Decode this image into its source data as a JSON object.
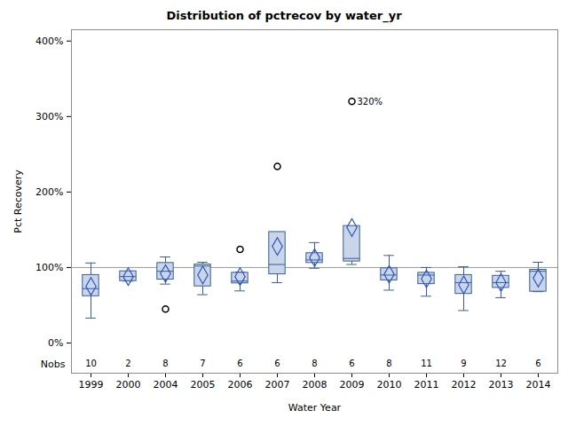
{
  "chart_data": {
    "type": "box",
    "title": "Distribution of pctrecov by water_yr",
    "x_label": "Water Year",
    "y_label": "Pct Recovery",
    "categories": [
      "1999",
      "2000",
      "2004",
      "2005",
      "2006",
      "2007",
      "2008",
      "2009",
      "2010",
      "2011",
      "2012",
      "2013",
      "2014"
    ],
    "boxes": [
      {
        "min": 33,
        "q1": 62,
        "median": 72,
        "q3": 90,
        "max": 106,
        "mean": 75,
        "nobs": 10,
        "outliers": []
      },
      {
        "min": 82,
        "q1": 82,
        "median": 88,
        "q3": 95,
        "max": 95,
        "mean": 88,
        "nobs": 2,
        "outliers": []
      },
      {
        "min": 78,
        "q1": 84,
        "median": 95,
        "q3": 106,
        "max": 114,
        "mean": 92,
        "nobs": 8,
        "outliers": [
          45
        ]
      },
      {
        "min": 64,
        "q1": 75,
        "median": 102,
        "q3": 104,
        "max": 107,
        "mean": 90,
        "nobs": 7,
        "outliers": []
      },
      {
        "min": 69,
        "q1": 79,
        "median": 82,
        "q3": 93,
        "max": 94,
        "mean": 88,
        "nobs": 6,
        "outliers": [
          124
        ]
      },
      {
        "min": 80,
        "q1": 91,
        "median": 104,
        "q3": 147,
        "max": 147,
        "mean": 128,
        "nobs": 6,
        "outliers": [
          234
        ]
      },
      {
        "min": 99,
        "q1": 106,
        "median": 110,
        "q3": 119,
        "max": 133,
        "mean": 113,
        "nobs": 8,
        "outliers": []
      },
      {
        "min": 104,
        "q1": 108,
        "median": 112,
        "q3": 155,
        "max": 155,
        "mean": 153,
        "nobs": 6,
        "outliers": [
          320
        ],
        "outlier_labels": [
          "320%"
        ]
      },
      {
        "min": 70,
        "q1": 83,
        "median": 90,
        "q3": 99,
        "max": 116,
        "mean": 91,
        "nobs": 8,
        "outliers": []
      },
      {
        "min": 62,
        "q1": 78,
        "median": 90,
        "q3": 93,
        "max": 100,
        "mean": 85,
        "nobs": 11,
        "outliers": []
      },
      {
        "min": 43,
        "q1": 65,
        "median": 80,
        "q3": 90,
        "max": 101,
        "mean": 77,
        "nobs": 9,
        "outliers": []
      },
      {
        "min": 60,
        "q1": 73,
        "median": 80,
        "q3": 89,
        "max": 95,
        "mean": 80,
        "nobs": 12,
        "outliers": []
      },
      {
        "min": 68,
        "q1": 68,
        "median": 95,
        "q3": 97,
        "max": 107,
        "mean": 86,
        "nobs": 6,
        "outliers": []
      }
    ],
    "nobs_label": "Nobs",
    "reference_line": 100,
    "color": "#3b5b92",
    "ylim": [
      -40,
      415
    ],
    "yticks": [
      {
        "value": 0,
        "label": "0%"
      },
      {
        "value": 100,
        "label": "100%"
      },
      {
        "value": 200,
        "label": "200%"
      },
      {
        "value": 300,
        "label": "300%"
      },
      {
        "value": 400,
        "label": "400%"
      }
    ],
    "grid": false
  }
}
